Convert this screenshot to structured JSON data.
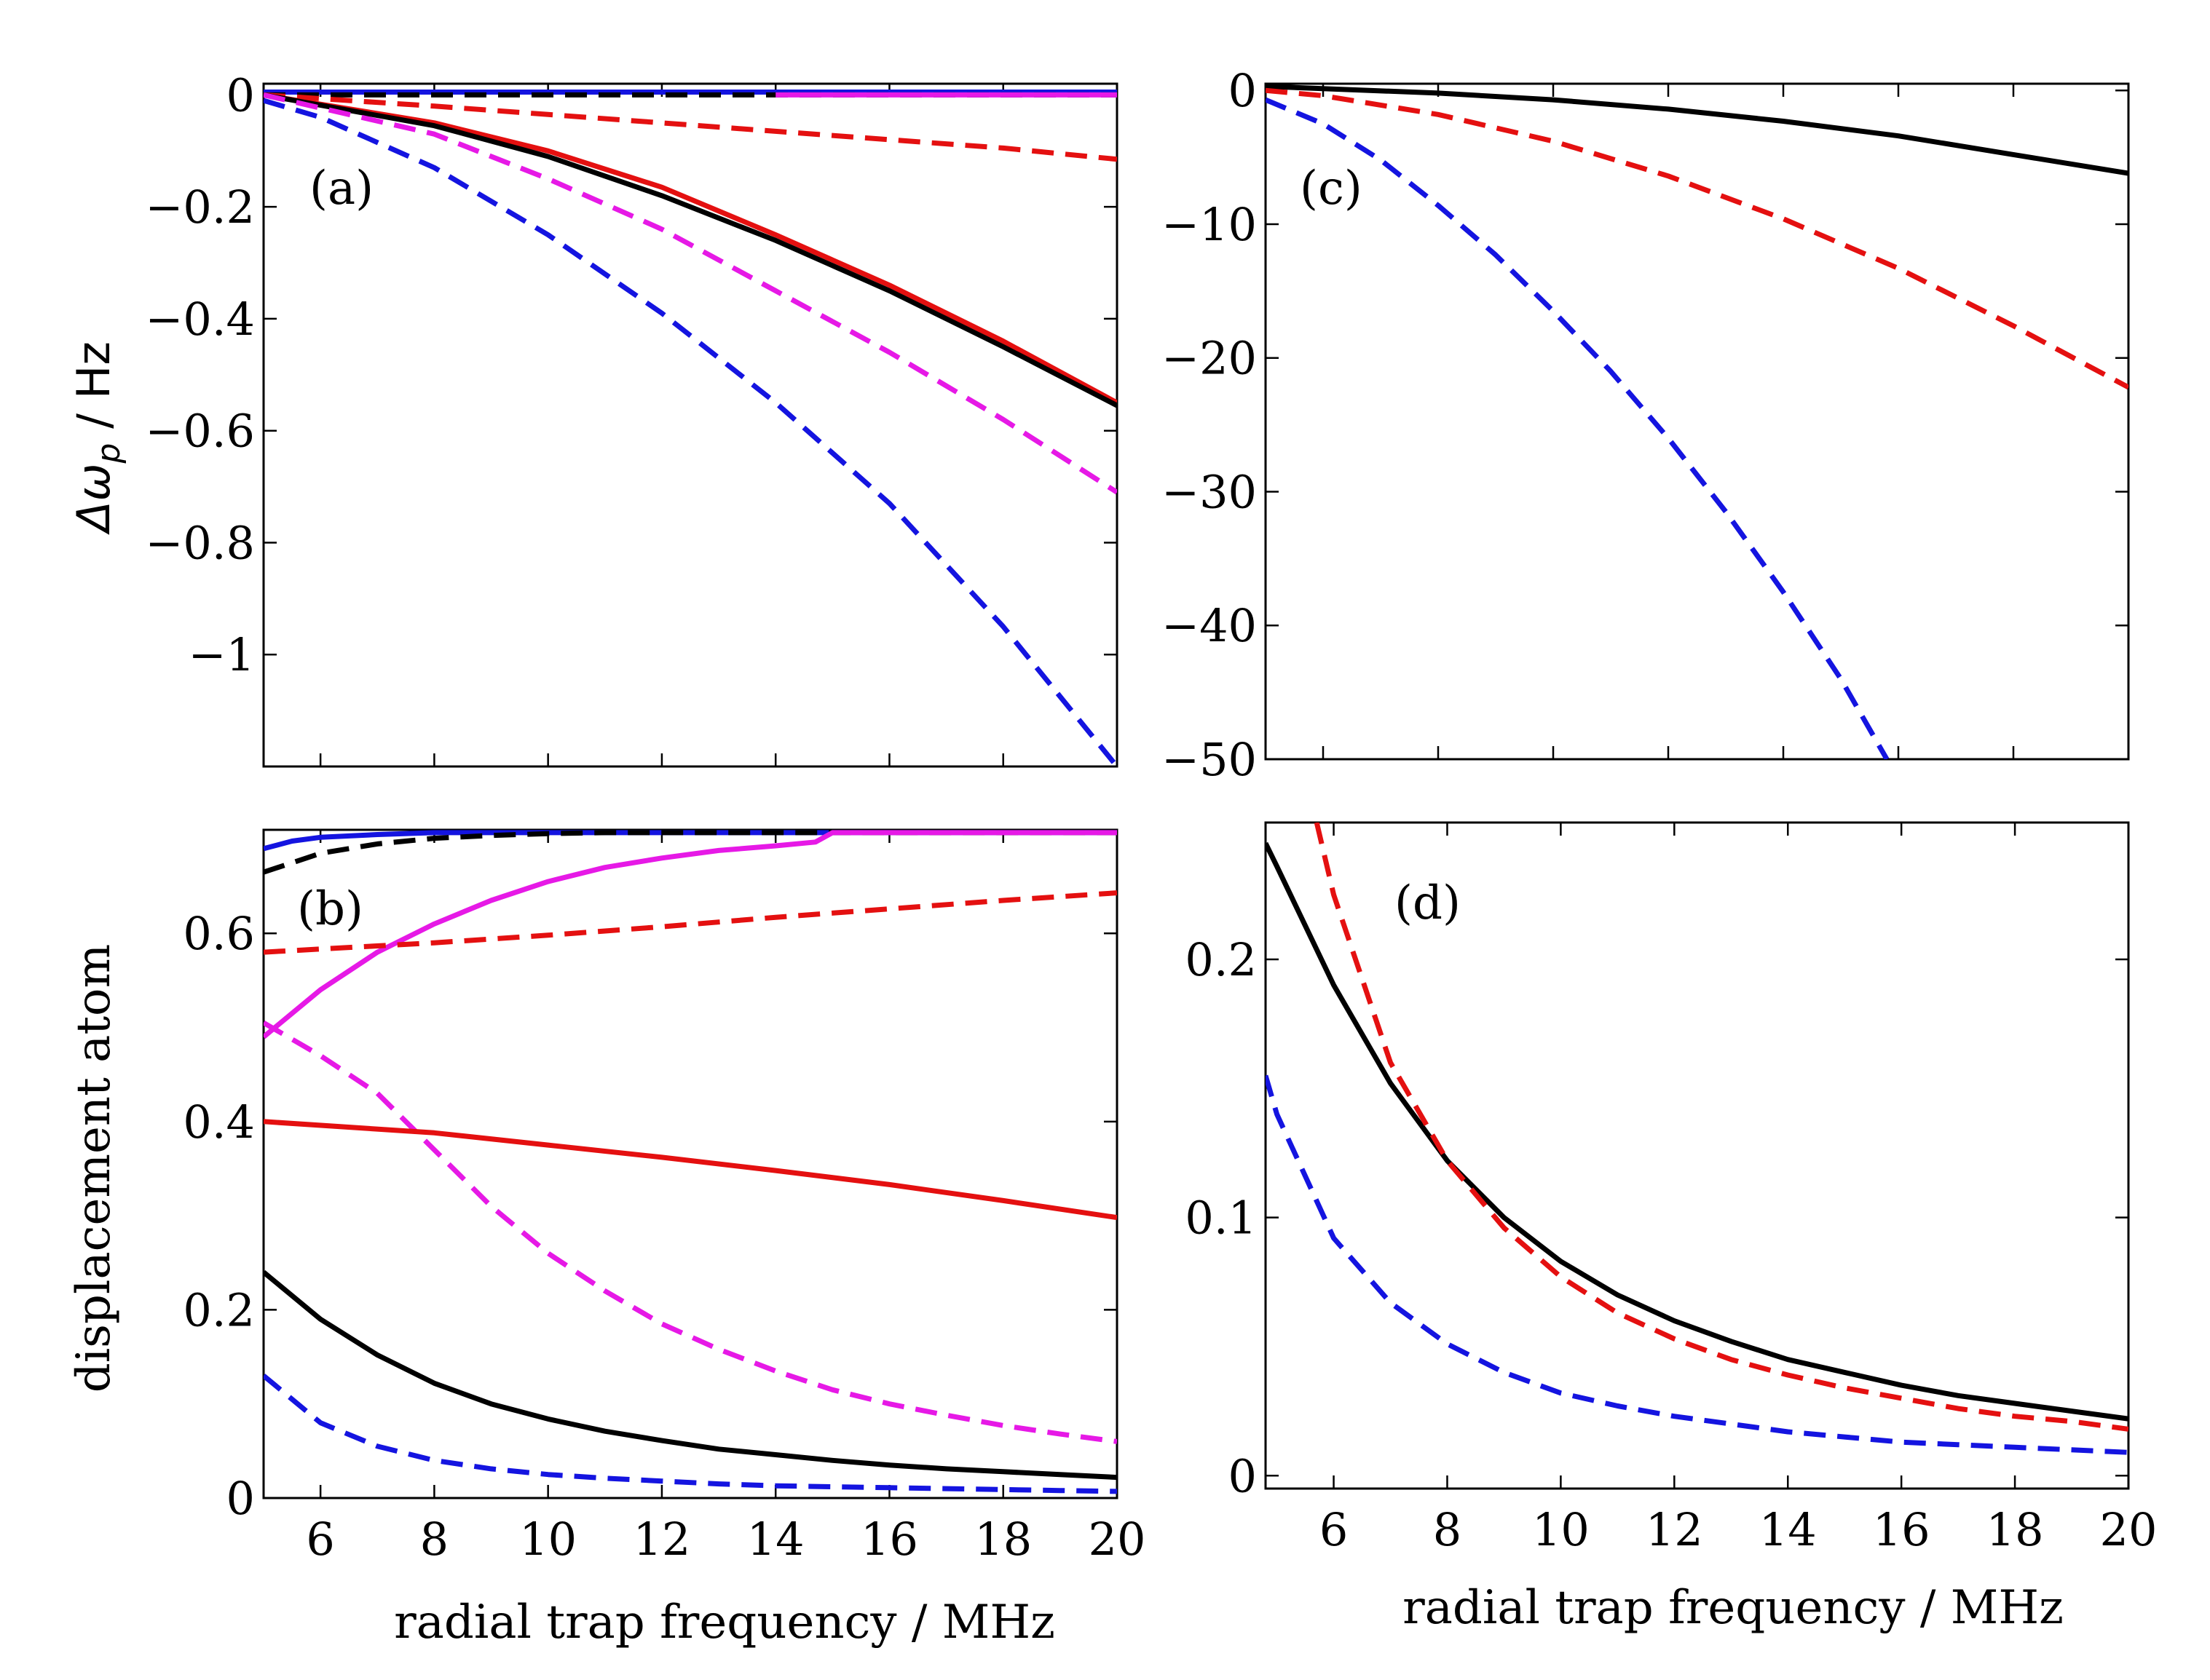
{
  "figure": {
    "y_label_top": "Δω",
    "y_label_top_sub": "p",
    "y_label_top_unit": " / Hz",
    "y_label_bottom": "displacement atom",
    "x_label_left": "radial trap frequency / MHz",
    "x_label_right": "radial trap frequency / MHz"
  },
  "colors": {
    "black": "#000000",
    "red": "#e41010",
    "blue": "#1414e0",
    "magenta": "#e619e6"
  },
  "chart_data": [
    {
      "id": "a",
      "tag": "(a)",
      "type": "line",
      "xlim": [
        5,
        20
      ],
      "ylim": [
        -1.2,
        0.02
      ],
      "xticks": [
        6,
        8,
        10,
        12,
        14,
        16,
        18,
        20
      ],
      "xtick_labels_shown": false,
      "yticks": [
        0,
        -0.2,
        -0.4,
        -0.6,
        -0.8,
        -1
      ],
      "ytick_labels": [
        "0",
        "−0.2",
        "−0.4",
        "−0.6",
        "−0.8",
        "−1"
      ],
      "series": [
        {
          "name": "blue solid",
          "color": "blue",
          "dash": false,
          "x": [
            5,
            20
          ],
          "y": [
            0.005,
            0.005
          ]
        },
        {
          "name": "black dashed",
          "color": "black",
          "dash": true,
          "x": [
            5,
            20
          ],
          "y": [
            0.0,
            0.0
          ]
        },
        {
          "name": "magenta solid",
          "color": "magenta",
          "dash": false,
          "x": [
            14,
            20
          ],
          "y": [
            0.0,
            0.0
          ]
        },
        {
          "name": "red dashed",
          "color": "red",
          "dash": true,
          "x": [
            5,
            8,
            10,
            12,
            14,
            16,
            18,
            20
          ],
          "y": [
            0.0,
            -0.02,
            -0.035,
            -0.05,
            -0.065,
            -0.08,
            -0.095,
            -0.115
          ]
        },
        {
          "name": "red solid",
          "color": "red",
          "dash": false,
          "x": [
            5,
            8,
            10,
            12,
            14,
            16,
            18,
            20
          ],
          "y": [
            0.0,
            -0.05,
            -0.1,
            -0.165,
            -0.25,
            -0.34,
            -0.44,
            -0.55
          ]
        },
        {
          "name": "black solid",
          "color": "black",
          "dash": false,
          "x": [
            5,
            8,
            10,
            12,
            14,
            16,
            18,
            20
          ],
          "y": [
            0.0,
            -0.055,
            -0.11,
            -0.18,
            -0.26,
            -0.35,
            -0.45,
            -0.555
          ]
        },
        {
          "name": "magenta dashed",
          "color": "magenta",
          "dash": true,
          "x": [
            5,
            8,
            10,
            12,
            14,
            16,
            18,
            20
          ],
          "y": [
            0.0,
            -0.07,
            -0.15,
            -0.24,
            -0.35,
            -0.46,
            -0.58,
            -0.71
          ]
        },
        {
          "name": "blue dashed",
          "color": "blue",
          "dash": true,
          "x": [
            5,
            6,
            8,
            10,
            12,
            14,
            16,
            18,
            20
          ],
          "y": [
            -0.01,
            -0.04,
            -0.13,
            -0.25,
            -0.39,
            -0.55,
            -0.73,
            -0.95,
            -1.2
          ]
        }
      ]
    },
    {
      "id": "c",
      "tag": "(c)",
      "type": "line",
      "xlim": [
        5,
        20
      ],
      "ylim": [
        -50,
        0.5
      ],
      "xticks": [
        6,
        8,
        10,
        12,
        14,
        16,
        18,
        20
      ],
      "xtick_labels_shown": false,
      "yticks": [
        0,
        -10,
        -20,
        -30,
        -40,
        -50
      ],
      "ytick_labels": [
        "0",
        "−10",
        "−20",
        "−30",
        "−40",
        "−50"
      ],
      "series": [
        {
          "name": "black solid",
          "color": "black",
          "dash": false,
          "x": [
            5,
            8,
            10,
            12,
            14,
            16,
            18,
            20
          ],
          "y": [
            0.3,
            -0.2,
            -0.7,
            -1.4,
            -2.3,
            -3.4,
            -4.8,
            -6.2
          ]
        },
        {
          "name": "red dashed",
          "color": "red",
          "dash": true,
          "x": [
            5,
            6,
            8,
            10,
            12,
            14,
            16,
            18,
            20
          ],
          "y": [
            0.0,
            -0.4,
            -1.8,
            -3.8,
            -6.4,
            -9.6,
            -13.3,
            -17.6,
            -22.2
          ]
        },
        {
          "name": "blue dashed",
          "color": "blue",
          "dash": true,
          "x": [
            5,
            6,
            7,
            8,
            9,
            10,
            11,
            12,
            13,
            14,
            15,
            15.8
          ],
          "y": [
            -0.7,
            -2.5,
            -5.2,
            -8.6,
            -12.3,
            -16.5,
            -21.0,
            -26.0,
            -31.5,
            -37.5,
            -44.0,
            -50.0
          ]
        }
      ]
    },
    {
      "id": "b",
      "tag": "(b)",
      "type": "line",
      "xlim": [
        5,
        20
      ],
      "ylim": [
        0,
        0.71
      ],
      "xticks": [
        6,
        8,
        10,
        12,
        14,
        16,
        18,
        20
      ],
      "xtick_labels": [
        "6",
        "8",
        "10",
        "12",
        "14",
        "16",
        "18",
        "20"
      ],
      "xtick_labels_shown": true,
      "yticks": [
        0,
        0.2,
        0.4,
        0.6
      ],
      "ytick_labels": [
        "0",
        "0.2",
        "0.4",
        "0.6"
      ],
      "series": [
        {
          "name": "blue solid",
          "color": "blue",
          "dash": false,
          "x": [
            5,
            5.5,
            6,
            7,
            8,
            10,
            20
          ],
          "y": [
            0.69,
            0.698,
            0.702,
            0.705,
            0.707,
            0.707,
            0.707
          ]
        },
        {
          "name": "black dashed",
          "color": "black",
          "dash": true,
          "x": [
            5,
            5.5,
            6,
            7,
            8,
            9,
            10,
            11,
            20
          ],
          "y": [
            0.665,
            0.675,
            0.685,
            0.695,
            0.701,
            0.704,
            0.706,
            0.707,
            0.707
          ]
        },
        {
          "name": "magenta solid",
          "color": "magenta",
          "dash": false,
          "x": [
            5,
            6,
            7,
            8,
            9,
            10,
            11,
            12,
            13,
            14,
            14.7,
            15,
            20
          ],
          "y": [
            0.49,
            0.54,
            0.58,
            0.61,
            0.635,
            0.655,
            0.67,
            0.68,
            0.688,
            0.693,
            0.697,
            0.707,
            0.707
          ]
        },
        {
          "name": "red dashed",
          "color": "red",
          "dash": true,
          "x": [
            5,
            8,
            10,
            12,
            14,
            16,
            18,
            20
          ],
          "y": [
            0.58,
            0.59,
            0.598,
            0.607,
            0.617,
            0.626,
            0.635,
            0.643
          ]
        },
        {
          "name": "magenta dashed",
          "color": "magenta",
          "dash": true,
          "x": [
            5,
            6,
            7,
            8,
            9,
            10,
            11,
            12,
            13,
            14,
            15,
            16,
            17,
            18,
            19,
            20
          ],
          "y": [
            0.505,
            0.47,
            0.43,
            0.37,
            0.31,
            0.26,
            0.22,
            0.185,
            0.158,
            0.135,
            0.115,
            0.1,
            0.088,
            0.077,
            0.068,
            0.06
          ]
        },
        {
          "name": "red solid",
          "color": "red",
          "dash": false,
          "x": [
            5,
            8,
            10,
            12,
            14,
            16,
            18,
            20
          ],
          "y": [
            0.4,
            0.388,
            0.375,
            0.362,
            0.348,
            0.333,
            0.316,
            0.298
          ]
        },
        {
          "name": "black solid",
          "color": "black",
          "dash": false,
          "x": [
            5,
            6,
            7,
            8,
            9,
            10,
            11,
            12,
            13,
            14,
            15,
            16,
            17,
            18,
            19,
            20
          ],
          "y": [
            0.24,
            0.19,
            0.152,
            0.122,
            0.1,
            0.084,
            0.071,
            0.061,
            0.052,
            0.046,
            0.04,
            0.035,
            0.031,
            0.028,
            0.025,
            0.022
          ]
        },
        {
          "name": "blue dashed",
          "color": "blue",
          "dash": true,
          "x": [
            5,
            6,
            7,
            8,
            9,
            10,
            11,
            12,
            13,
            14,
            15,
            16,
            17,
            18,
            19,
            20
          ],
          "y": [
            0.13,
            0.08,
            0.055,
            0.04,
            0.031,
            0.025,
            0.021,
            0.018,
            0.015,
            0.013,
            0.012,
            0.011,
            0.01,
            0.009,
            0.008,
            0.007
          ]
        }
      ]
    },
    {
      "id": "d",
      "tag": "(d)",
      "type": "line",
      "xlim": [
        4.8,
        20
      ],
      "ylim": [
        -0.005,
        0.253
      ],
      "xticks": [
        6,
        8,
        10,
        12,
        14,
        16,
        18,
        20
      ],
      "xtick_labels": [
        "6",
        "8",
        "10",
        "12",
        "14",
        "16",
        "18",
        "20"
      ],
      "xtick_labels_shown": true,
      "yticks": [
        0,
        0.1,
        0.2
      ],
      "ytick_labels": [
        "0",
        "0.1",
        "0.2"
      ],
      "series": [
        {
          "name": "black solid",
          "color": "black",
          "dash": false,
          "x": [
            4.8,
            5,
            6,
            7,
            8,
            9,
            10,
            11,
            12,
            13,
            14,
            15,
            16,
            17,
            18,
            19,
            20
          ],
          "y": [
            0.245,
            0.236,
            0.19,
            0.152,
            0.122,
            0.1,
            0.083,
            0.07,
            0.06,
            0.052,
            0.045,
            0.04,
            0.035,
            0.031,
            0.028,
            0.025,
            0.022
          ]
        },
        {
          "name": "red dashed",
          "color": "red",
          "dash": true,
          "x": [
            5.7,
            6,
            7,
            8,
            9,
            10,
            11,
            12,
            13,
            14,
            15,
            16,
            17,
            18,
            19,
            20
          ],
          "y": [
            0.253,
            0.225,
            0.16,
            0.122,
            0.096,
            0.077,
            0.063,
            0.053,
            0.045,
            0.039,
            0.034,
            0.03,
            0.026,
            0.023,
            0.021,
            0.018
          ]
        },
        {
          "name": "blue dashed",
          "color": "blue",
          "dash": true,
          "x": [
            4.8,
            5,
            6,
            7,
            8,
            9,
            10,
            11,
            12,
            13,
            14,
            15,
            16,
            17,
            18,
            19,
            20
          ],
          "y": [
            0.155,
            0.14,
            0.092,
            0.067,
            0.051,
            0.04,
            0.032,
            0.027,
            0.023,
            0.02,
            0.017,
            0.015,
            0.013,
            0.012,
            0.011,
            0.01,
            0.009
          ]
        }
      ]
    }
  ]
}
